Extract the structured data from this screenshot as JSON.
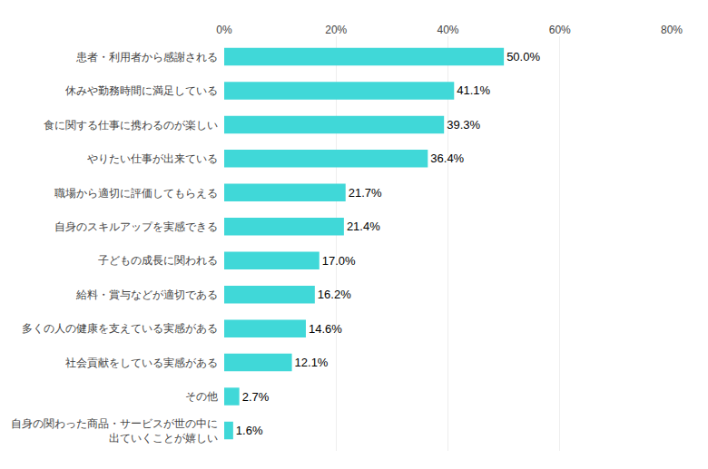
{
  "chart_data": {
    "type": "bar",
    "orientation": "horizontal",
    "categories": [
      "自身の関わった商品・サービスが世の中に\n出ていくことが嬉しい",
      "その他",
      "社会貢献をしている実感がある",
      "多くの人の健康を支えている実感がある",
      "給料・賞与などが適切である",
      "子どもの成長に関われる",
      "自身のスキルアップを実感できる",
      "職場から適切に評価してもらえる",
      "やりたい仕事が出来ている",
      "食に関する仕事に携わるのが楽しい",
      "休みや勤務時間に満足している",
      "患者・利用者から感謝される"
    ],
    "values": [
      1.6,
      2.7,
      12.1,
      14.6,
      16.2,
      17.0,
      21.4,
      21.7,
      36.4,
      39.3,
      41.1,
      50.0
    ],
    "value_labels": [
      "1.6%",
      "2.7%",
      "12.1%",
      "14.6%",
      "16.2%",
      "17.0%",
      "21.4%",
      "21.7%",
      "36.4%",
      "39.3%",
      "41.1%",
      "50.0%"
    ],
    "color": "#40d8d8",
    "xlim": [
      0,
      80
    ],
    "xticks": [
      {
        "value": 0,
        "label": "0%"
      },
      {
        "value": 20,
        "label": "20%"
      },
      {
        "value": 40,
        "label": "40%"
      },
      {
        "value": 60,
        "label": "60%"
      },
      {
        "value": 80,
        "label": "80%"
      }
    ],
    "grid": true,
    "data_labels": true
  }
}
